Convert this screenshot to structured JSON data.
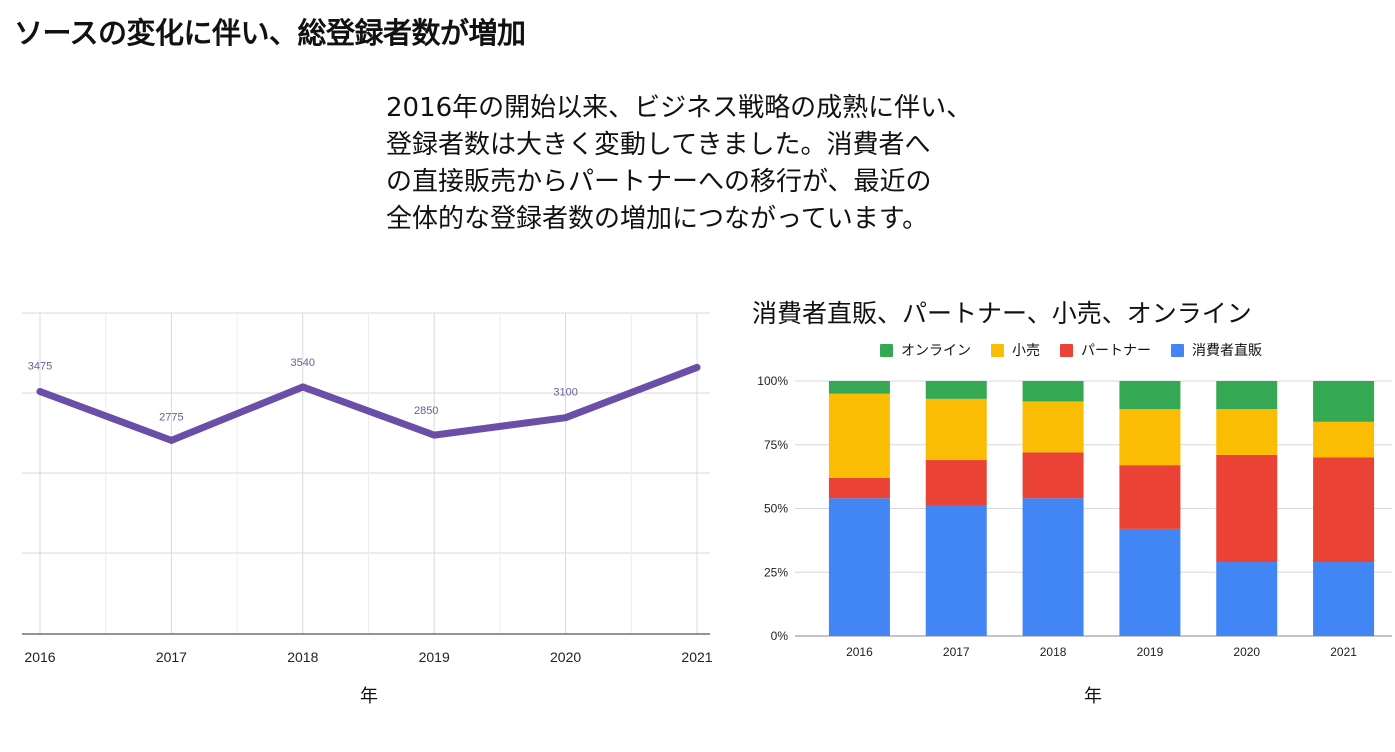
{
  "slide": {
    "title": "ソースの変化に伴い、総登録者数が増加",
    "paragraph_lines": [
      "2016年の開始以来、ビジネス戦略の成熟に伴い、",
      "登録者数は大きく変動してきました。消費者へ",
      "の直接販売からパートナーへの移行が、最近の",
      "全体的な登録者数の増加につながっています。"
    ]
  },
  "colors": {
    "line": "#6a4ea8",
    "gridline": "#d9d9d9",
    "online": "#34a853",
    "retail": "#fbbc04",
    "partner": "#ea4335",
    "direct": "#4285f4"
  },
  "chart_data": [
    {
      "type": "line",
      "title": "",
      "xlabel": "年",
      "ylabel": "",
      "x": [
        "2016",
        "2017",
        "2018",
        "2019",
        "2020",
        "2021"
      ],
      "series": [
        {
          "values": [
            3475,
            2775,
            3540,
            2850,
            3100,
            3820
          ],
          "data_labels": [
            "3475",
            "2775",
            "3540",
            "2850",
            "3100",
            ""
          ]
        }
      ],
      "ylim": [
        0,
        4600
      ],
      "grid": true,
      "legend": "none"
    },
    {
      "type": "bar",
      "stacked": "percent",
      "title": "消費者直販、パートナー、小売、オンライン",
      "xlabel": "年",
      "ylabel": "",
      "categories": [
        "2016",
        "2017",
        "2018",
        "2019",
        "2020",
        "2021"
      ],
      "series": [
        {
          "name": "消費者直販",
          "color_key": "direct",
          "values": [
            54,
            51,
            54,
            42,
            29,
            29
          ]
        },
        {
          "name": "パートナー",
          "color_key": "partner",
          "values": [
            8,
            18,
            18,
            25,
            42,
            41
          ]
        },
        {
          "name": "小売",
          "color_key": "retail",
          "values": [
            33,
            24,
            20,
            22,
            18,
            14
          ]
        },
        {
          "name": "オンライン",
          "color_key": "online",
          "values": [
            5,
            7,
            8,
            11,
            11,
            16
          ]
        }
      ],
      "legend_order": [
        "オンライン",
        "小売",
        "パートナー",
        "消費者直販"
      ],
      "y_ticks": [
        "0%",
        "25%",
        "50%",
        "75%",
        "100%"
      ],
      "ylim": [
        0,
        100
      ],
      "grid": true,
      "legend": "top"
    }
  ]
}
